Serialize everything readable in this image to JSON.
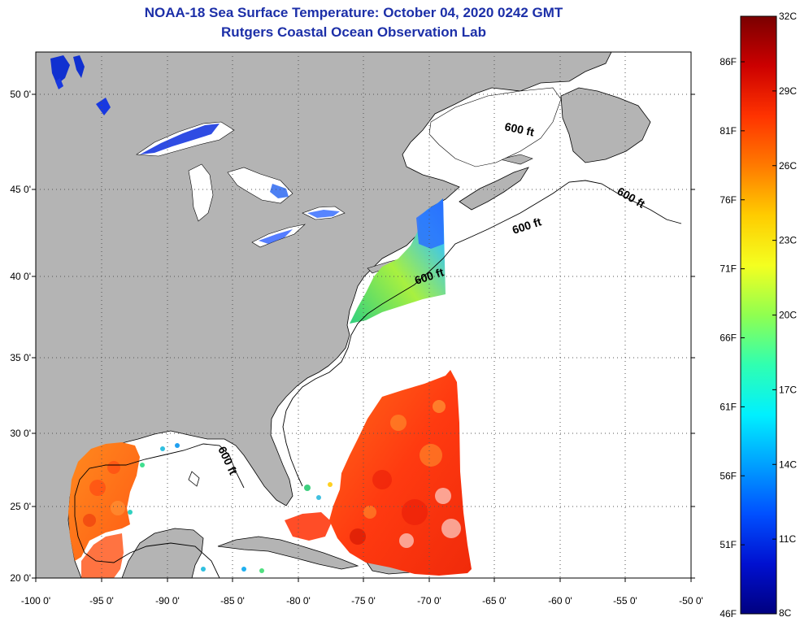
{
  "title": {
    "line1": "NOAA-18 Sea Surface Temperature:  October 04, 2020 0242 GMT",
    "line2": "Rutgers Coastal Ocean Observation Lab"
  },
  "map": {
    "lon_ticks": [
      "-100 0'",
      "-95 0'",
      "-90 0'",
      "-85 0'",
      "-80 0'",
      "-75 0'",
      "-70 0'",
      "-65 0'",
      "-60 0'",
      "-55 0'",
      "-50 0'"
    ],
    "lat_ticks": [
      "20 0'",
      "25 0'",
      "30 0'",
      "35 0'",
      "40 0'",
      "45 0'",
      "50 0'"
    ],
    "land_color": "#b4b4b4",
    "ocean_color": "#ffffff",
    "grid": "dotted",
    "contour_label": "600 ft"
  },
  "colorbar": {
    "celsius": [
      "32C",
      "29C",
      "26C",
      "23C",
      "20C",
      "17C",
      "14C",
      "11C",
      "8C"
    ],
    "fahrenheit": [
      "86F",
      "81F",
      "76F",
      "71F",
      "66F",
      "61F",
      "56F",
      "51F",
      "46F"
    ],
    "colors_top_to_bottom": [
      "#7a0000",
      "#cc0000",
      "#ff3300",
      "#ff7a00",
      "#ffcc00",
      "#f4ff20",
      "#90ff50",
      "#30ffb0",
      "#00f0ff",
      "#00a0ff",
      "#0050ff",
      "#0010d0",
      "#000080"
    ]
  }
}
